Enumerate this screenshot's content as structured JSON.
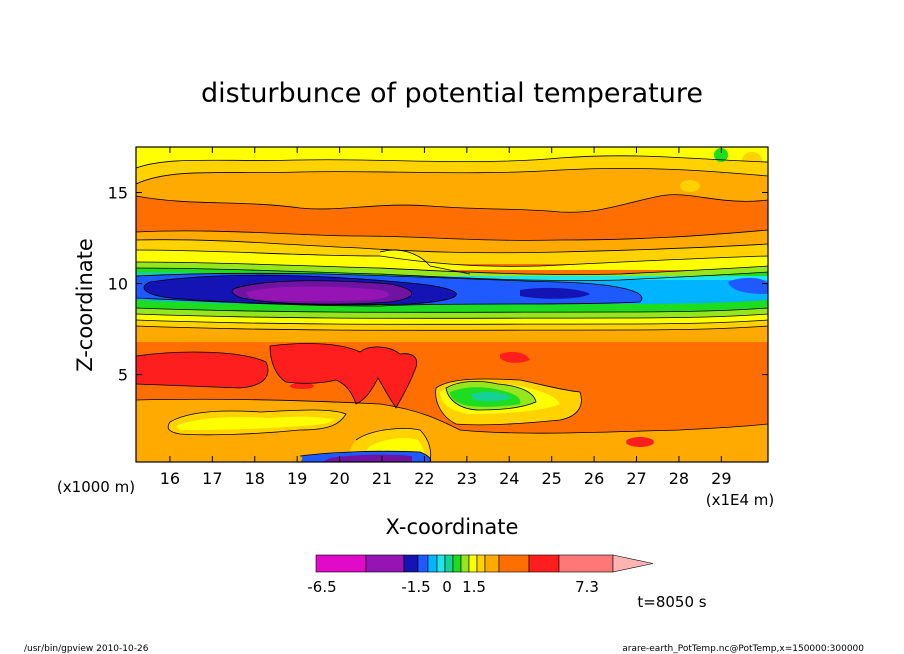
{
  "chart_data": {
    "type": "heatmap",
    "title": "disturbunce of potential temperature",
    "xlabel": "X-coordinate",
    "ylabel": "Z-coordinate",
    "x_unit_left": "(x1000 m)",
    "x_unit_right": "(x1E4 m)",
    "x_ticks": [
      "16",
      "17",
      "18",
      "19",
      "20",
      "21",
      "22",
      "23",
      "24",
      "25",
      "26",
      "27",
      "28",
      "29"
    ],
    "y_ticks": [
      "5",
      "10",
      "15"
    ],
    "xlim": [
      15.2,
      30.1
    ],
    "ylim": [
      0.2,
      17.5
    ],
    "colorbar": {
      "labels": [
        "-6.5",
        "-1.5",
        "0",
        "1.5",
        "7.3"
      ],
      "colors": [
        "#e10ac8",
        "#9614b4",
        "#6e14a0",
        "#1414b4",
        "#1e5aff",
        "#00b4ff",
        "#1ee6e6",
        "#14d296",
        "#1edc1e",
        "#96e61e",
        "#ffff00",
        "#ffd200",
        "#ffaa00",
        "#ff6e00",
        "#ff1e1e",
        "#ff7878",
        "#ffb4b4"
      ]
    },
    "time_label": "t=8050 s"
  },
  "footer": {
    "left": "/usr/bin/gpview  2010-10-26",
    "right": "arare-earth_PotTemp.nc@PotTemp,x=150000:300000"
  }
}
